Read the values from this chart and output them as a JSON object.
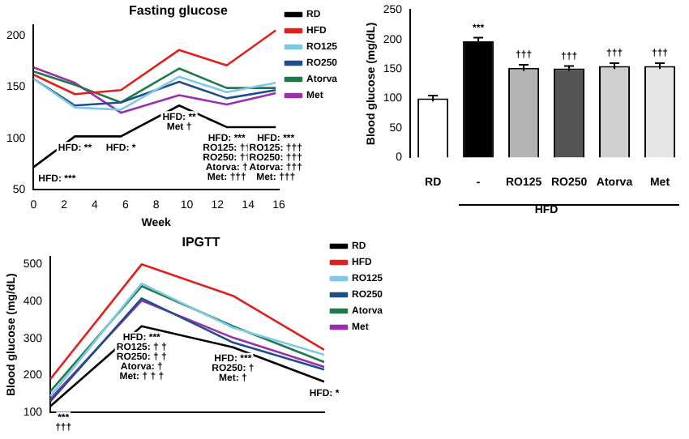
{
  "chart_data": [
    {
      "type": "line",
      "title": "Fasting glucose",
      "xlabel": "Week",
      "x": [
        0,
        2.7,
        5.7,
        9.5,
        12.6,
        15.8
      ],
      "xlim": [
        0,
        16
      ],
      "xticks": [
        0,
        2,
        4,
        6,
        8,
        10,
        12,
        14,
        16
      ],
      "ylim": [
        50,
        210
      ],
      "yticks": [
        50,
        100,
        150,
        200
      ],
      "grid": false,
      "legend": "right",
      "series": [
        {
          "name": "RD",
          "color": "#000000",
          "values": [
            72,
            102,
            102,
            132,
            111,
            111
          ]
        },
        {
          "name": "HFD",
          "color": "#e0201b",
          "values": [
            162,
            143,
            147,
            186,
            171,
            205
          ]
        },
        {
          "name": "RO125",
          "color": "#7ec8e8",
          "values": [
            158,
            130,
            128,
            160,
            145,
            154
          ]
        },
        {
          "name": "RO250",
          "color": "#1f4e8c",
          "values": [
            158,
            132,
            135,
            155,
            139,
            147
          ]
        },
        {
          "name": "Atorva",
          "color": "#1e7a4a",
          "values": [
            165,
            152,
            135,
            168,
            149,
            149
          ]
        },
        {
          "name": "Met",
          "color": "#9b2fae",
          "values": [
            169,
            154,
            125,
            142,
            133,
            144
          ]
        }
      ],
      "annotations": [
        {
          "text": "HFD: ***",
          "x": 0,
          "y": 72
        },
        {
          "text": "HFD: **",
          "x": 2.7,
          "y": 102
        },
        {
          "text": "HFD: *",
          "x": 5.7,
          "y": 102
        },
        {
          "text": "HFD: **\nMet †",
          "x": 9.5,
          "y": 132
        },
        {
          "text": "HFD: ***\nRO125: ††\nRO250: ††\nAtorva: †\nMet: †††",
          "x": 12.6,
          "y": 111
        },
        {
          "text": "HFD: ***\nRO125: †††\nRO250: †††\nAtorva: †††\nMet: †††",
          "x": 15.8,
          "y": 111
        }
      ]
    },
    {
      "type": "bar",
      "ylabel": "Blood glucose (mg/dL)",
      "xlabel": "HFD",
      "categories": [
        "RD",
        "-",
        "RO125",
        "RO250",
        "Atorva",
        "Met"
      ],
      "values": [
        100,
        197,
        152,
        151,
        155,
        155
      ],
      "errors": [
        5,
        6,
        5,
        4,
        5,
        5
      ],
      "colors": [
        "#ffffff",
        "#000000",
        "#b3b3b3",
        "#555555",
        "#cfcfcf",
        "#e6e6e6"
      ],
      "ylim": [
        0,
        250
      ],
      "yticks": [
        0,
        50,
        100,
        150,
        200,
        250
      ],
      "grid": false,
      "annotations": [
        {
          "text": "***",
          "x": "-",
          "y": 197
        },
        {
          "text": "†††",
          "x": "RO125",
          "y": 152
        },
        {
          "text": "†††",
          "x": "RO250",
          "y": 151
        },
        {
          "text": "†††",
          "x": "Atorva",
          "y": 155
        },
        {
          "text": "†††",
          "x": "Met",
          "y": 155
        }
      ]
    },
    {
      "type": "line",
      "title": "IPGTT",
      "ylabel": "Blood glucose (mg/dL)",
      "categories": [
        null,
        null,
        null,
        null
      ],
      "ylim": [
        100,
        520
      ],
      "yticks": [
        100,
        200,
        300,
        400,
        500
      ],
      "grid": false,
      "legend": "right",
      "series": [
        {
          "name": "RD",
          "color": "#000000",
          "values": [
            117,
            333,
            276,
            183
          ]
        },
        {
          "name": "HFD",
          "color": "#e0201b",
          "values": [
            190,
            500,
            415,
            269
          ]
        },
        {
          "name": "RO125",
          "color": "#7ec8e8",
          "values": [
            144,
            448,
            329,
            256
          ]
        },
        {
          "name": "RO250",
          "color": "#1f4e8c",
          "values": [
            130,
            408,
            289,
            216
          ]
        },
        {
          "name": "Atorva",
          "color": "#1e7a4a",
          "values": [
            157,
            441,
            333,
            236
          ]
        },
        {
          "name": "Met",
          "color": "#9b2fae",
          "values": [
            137,
            402,
            302,
            223
          ]
        }
      ],
      "annotations": [
        "***\n†††",
        "HFD: ***\nRO125: † †\nRO250: † †\nAtorva: †\nMet: † † †",
        "HFD: ***\nRO250: †\nMet: †",
        "HFD: *"
      ]
    }
  ]
}
